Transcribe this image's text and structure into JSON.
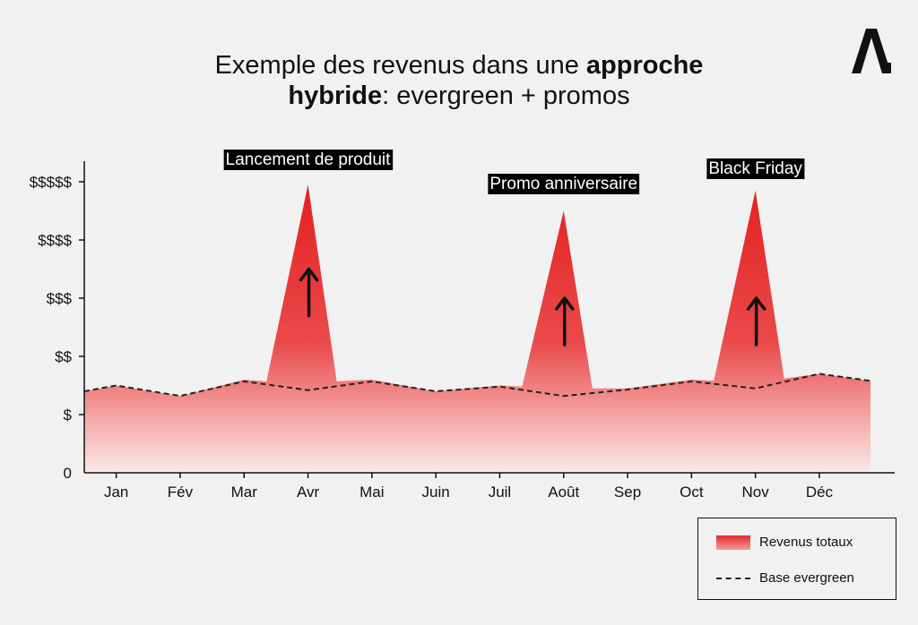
{
  "title": {
    "part1": "Exemple des revenus dans une ",
    "bold1": "approche",
    "bold2": "hybride",
    "part2": ": evergreen + promos"
  },
  "colors": {
    "area_top": "#e32020",
    "area_bottom": "#ffffff",
    "baseline": "#222222",
    "annotation_bg": "#000000",
    "annotation_text": "#ffffff"
  },
  "chart_data": {
    "type": "area",
    "title": "Exemple des revenus dans une approche hybride: evergreen + promos",
    "categories": [
      "Jan",
      "Fév",
      "Mar",
      "Avr",
      "Mai",
      "Juin",
      "Juil",
      "Août",
      "Sep",
      "Oct",
      "Nov",
      "Déc"
    ],
    "y_ticks": [
      {
        "value": 0,
        "label": "0"
      },
      {
        "value": 1,
        "label": "$"
      },
      {
        "value": 2,
        "label": "$$"
      },
      {
        "value": 3,
        "label": "$$$"
      },
      {
        "value": 4,
        "label": "$$$$"
      },
      {
        "value": 5,
        "label": "$$$$$"
      }
    ],
    "ylim": [
      0,
      5.4
    ],
    "grid": false,
    "series": [
      {
        "name": "Revenus totaux",
        "points": [
          {
            "x": 0.0,
            "y": 1.4
          },
          {
            "x": 0.5,
            "y": 1.5
          },
          {
            "x": 1.5,
            "y": 1.32
          },
          {
            "x": 2.5,
            "y": 1.6
          },
          {
            "x": 2.85,
            "y": 1.57
          },
          {
            "x": 3.5,
            "y": 4.95
          },
          {
            "x": 3.95,
            "y": 1.57
          },
          {
            "x": 4.5,
            "y": 1.6
          },
          {
            "x": 5.5,
            "y": 1.4
          },
          {
            "x": 6.5,
            "y": 1.5
          },
          {
            "x": 6.85,
            "y": 1.48
          },
          {
            "x": 7.5,
            "y": 4.5
          },
          {
            "x": 7.95,
            "y": 1.45
          },
          {
            "x": 8.5,
            "y": 1.45
          },
          {
            "x": 9.5,
            "y": 1.6
          },
          {
            "x": 9.85,
            "y": 1.58
          },
          {
            "x": 10.5,
            "y": 4.85
          },
          {
            "x": 10.95,
            "y": 1.62
          },
          {
            "x": 11.5,
            "y": 1.7
          },
          {
            "x": 12.3,
            "y": 1.58
          }
        ]
      },
      {
        "name": "Base evergreen",
        "points": [
          {
            "x": 0.0,
            "y": 1.4
          },
          {
            "x": 0.5,
            "y": 1.5
          },
          {
            "x": 1.5,
            "y": 1.32
          },
          {
            "x": 2.5,
            "y": 1.57
          },
          {
            "x": 3.5,
            "y": 1.42
          },
          {
            "x": 4.5,
            "y": 1.57
          },
          {
            "x": 5.5,
            "y": 1.4
          },
          {
            "x": 6.5,
            "y": 1.48
          },
          {
            "x": 7.5,
            "y": 1.32
          },
          {
            "x": 8.5,
            "y": 1.43
          },
          {
            "x": 9.5,
            "y": 1.57
          },
          {
            "x": 10.5,
            "y": 1.45
          },
          {
            "x": 11.5,
            "y": 1.7
          },
          {
            "x": 12.3,
            "y": 1.58
          }
        ]
      }
    ],
    "annotations": [
      {
        "label": "Lancement de produit",
        "month": "Avr",
        "x": 3.5,
        "arrow_from": 2.7,
        "arrow_to": 3.5
      },
      {
        "label": "Promo anniversaire",
        "month": "Août",
        "x": 7.5,
        "arrow_from": 2.2,
        "arrow_to": 3.0
      },
      {
        "label": "Black Friday",
        "month": "Nov",
        "x": 10.5,
        "arrow_from": 2.2,
        "arrow_to": 3.0
      }
    ],
    "legend": {
      "position": "bottom-right",
      "items": [
        {
          "label": "Revenus totaux",
          "style": "gradient-fill"
        },
        {
          "label": "Base evergreen",
          "style": "dashed-line"
        }
      ]
    }
  }
}
